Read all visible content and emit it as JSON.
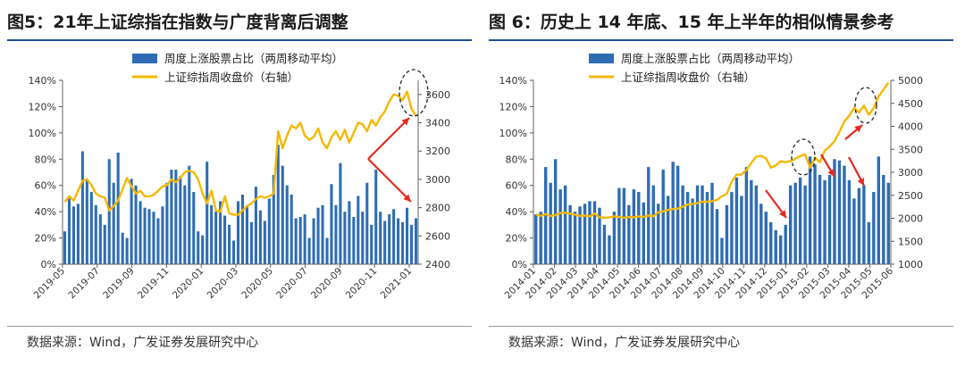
{
  "panels": [
    {
      "title": "图5：21年上证综指在指数与广度背离后调整",
      "source": "数据来源：Wind，广发证券发展研究中心"
    },
    {
      "title": "图 6：历史上 14 年底、15 年上半年的相似情景参考",
      "source": "数据来源：Wind，广发证券发展研究中心"
    }
  ],
  "chart_data": [
    {
      "type": "bar+line",
      "legend": [
        "周度上涨股票占比（两周移动平均）",
        "上证综指周收盘价（右轴）"
      ],
      "colors": {
        "bar": "#2e6db4",
        "line": "#f5b800",
        "arrow": "#e32b1e"
      },
      "left_axis": {
        "min": 0,
        "max": 1.4,
        "ticks": [
          "0%",
          "20%",
          "40%",
          "60%",
          "80%",
          "100%",
          "120%",
          "140%"
        ]
      },
      "right_axis": {
        "min": 2400,
        "max": 3700,
        "ticks": [
          "2400",
          "2600",
          "2800",
          "3000",
          "3200",
          "3400",
          "3600"
        ]
      },
      "x_ticks": [
        "2019-05",
        "2019-07",
        "2019-09",
        "2019-11",
        "2020-01",
        "2020-03",
        "2020-05",
        "2020-07",
        "2020-09",
        "2020-11",
        "2021-01"
      ],
      "bars": [
        0.25,
        0.5,
        0.44,
        0.46,
        0.86,
        0.64,
        0.55,
        0.45,
        0.38,
        0.3,
        0.8,
        0.62,
        0.85,
        0.24,
        0.2,
        0.65,
        0.6,
        0.48,
        0.43,
        0.42,
        0.4,
        0.35,
        0.44,
        0.62,
        0.72,
        0.72,
        0.67,
        0.6,
        0.75,
        0.55,
        0.25,
        0.22,
        0.78,
        0.45,
        0.4,
        0.48,
        0.37,
        0.3,
        0.18,
        0.48,
        0.53,
        0.45,
        0.32,
        0.59,
        0.41,
        0.33,
        0.5,
        0.68,
        0.91,
        0.75,
        0.6,
        0.53,
        0.35,
        0.36,
        0.38,
        0.2,
        0.35,
        0.43,
        0.45,
        0.2,
        0.61,
        0.45,
        0.77,
        0.4,
        0.48,
        0.36,
        0.52,
        0.4,
        0.62,
        0.3,
        0.72,
        0.4,
        0.33,
        0.38,
        0.42,
        0.35,
        0.32,
        0.43,
        0.3,
        0.35
      ],
      "line": [
        2840,
        2880,
        2850,
        2920,
        2990,
        3000,
        2960,
        2900,
        2880,
        2870,
        2780,
        2810,
        2850,
        2930,
        3010,
        2950,
        2900,
        2920,
        2880,
        2880,
        2890,
        2920,
        2950,
        2960,
        3000,
        2980,
        3010,
        3050,
        3060,
        3050,
        3000,
        2900,
        2830,
        2920,
        2780,
        2770,
        2880,
        2760,
        2750,
        2750,
        2780,
        2810,
        2830,
        2860,
        2880,
        2870,
        2880,
        2900,
        3340,
        3220,
        3310,
        3380,
        3360,
        3400,
        3310,
        3280,
        3300,
        3360,
        3260,
        3220,
        3300,
        3340,
        3280,
        3350,
        3260,
        3330,
        3400,
        3390,
        3340,
        3420,
        3380,
        3440,
        3480,
        3550,
        3600,
        3590,
        3560,
        3620,
        3500,
        3450
      ],
      "annotations": [
        "dashed-ellipse-peak",
        "red-divergence-arrows"
      ]
    },
    {
      "type": "bar+line",
      "legend": [
        "周度上涨股票占比（两周移动平均）",
        "上证综指周收盘价（右轴）"
      ],
      "colors": {
        "bar": "#2e6db4",
        "line": "#f5b800",
        "arrow": "#e32b1e"
      },
      "left_axis": {
        "min": 0,
        "max": 1.4,
        "ticks": [
          "0%",
          "20%",
          "40%",
          "60%",
          "80%",
          "100%",
          "120%",
          "140%"
        ]
      },
      "right_axis": {
        "min": 1000,
        "max": 5000,
        "ticks": [
          "1000",
          "1500",
          "2000",
          "2500",
          "3000",
          "3500",
          "4000",
          "4500",
          "5000"
        ]
      },
      "x_ticks": [
        "2014-01",
        "2014-02",
        "2014-03",
        "2014-04",
        "2014-05",
        "2014-06",
        "2014-07",
        "2014-08",
        "2014-09",
        "2014-10",
        "2014-11",
        "2014-12",
        "2015-01",
        "2015-02",
        "2015-03",
        "2015-04",
        "2015-05",
        "2015-06"
      ],
      "bars": [
        0.38,
        0.4,
        0.74,
        0.62,
        0.8,
        0.57,
        0.6,
        0.45,
        0.4,
        0.44,
        0.46,
        0.48,
        0.48,
        0.43,
        0.3,
        0.22,
        0.4,
        0.58,
        0.58,
        0.45,
        0.57,
        0.55,
        0.47,
        0.74,
        0.6,
        0.46,
        0.72,
        0.52,
        0.78,
        0.75,
        0.6,
        0.55,
        0.5,
        0.6,
        0.6,
        0.55,
        0.62,
        0.42,
        0.2,
        0.45,
        0.55,
        0.66,
        0.52,
        0.74,
        0.64,
        0.6,
        0.46,
        0.4,
        0.32,
        0.26,
        0.22,
        0.3,
        0.6,
        0.62,
        0.66,
        0.6,
        0.82,
        0.76,
        0.68,
        0.64,
        0.68,
        0.8,
        0.79,
        0.75,
        0.64,
        0.5,
        0.58,
        0.6,
        0.32,
        0.55,
        0.82,
        0.68,
        0.62
      ],
      "line": [
        2080,
        2050,
        2090,
        2050,
        2070,
        2110,
        2120,
        2100,
        2080,
        2050,
        2060,
        2040,
        2100,
        2020,
        2010,
        2020,
        2040,
        2030,
        2010,
        2030,
        2020,
        2040,
        2030,
        2060,
        2040,
        2130,
        2150,
        2180,
        2200,
        2210,
        2250,
        2300,
        2310,
        2330,
        2360,
        2360,
        2370,
        2400,
        2480,
        2530,
        2800,
        2950,
        2950,
        3050,
        3200,
        3340,
        3360,
        3300,
        3100,
        3150,
        3240,
        3220,
        3240,
        3300,
        3350,
        3390,
        3100,
        3320,
        3220,
        3470,
        3560,
        3680,
        3880,
        4100,
        4230,
        4400,
        4300,
        4450,
        4250,
        4400,
        4650,
        4800,
        4950
      ],
      "annotations": [
        "dashed-ellipse-2015-01",
        "dashed-ellipse-2015-04",
        "red-arrows"
      ]
    }
  ]
}
